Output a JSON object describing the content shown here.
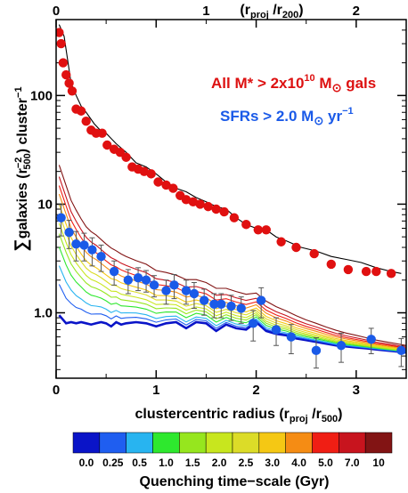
{
  "chart_data": {
    "type": "line",
    "xlabel_main": "clustercentric radius (r",
    "xlabel_sub1": "proj",
    "xlabel_mid": " /r",
    "xlabel_sub2": "500",
    "xlabel_end": ")",
    "top_xlabel_main": "(r",
    "top_xlabel_sub1": "proj",
    "top_xlabel_mid": " /r",
    "top_xlabel_sub2": "200",
    "top_xlabel_end": ")",
    "ylabel_sym": "∑",
    "ylabel_main": "galaxies (r",
    "ylabel_sub": "500",
    "ylabel_sup": "−2",
    "ylabel_mid": ") cluster",
    "ylabel_sup2": "−1",
    "xlim": [
      0,
      3.5
    ],
    "ylim": [
      0.25,
      500
    ],
    "yscale": "log",
    "x_ticks": [
      "0",
      "1",
      "2",
      "3"
    ],
    "x_tick_values": [
      0,
      1,
      2,
      3
    ],
    "top_x_ticks": [
      "0",
      "1",
      "2"
    ],
    "top_x_tick_values": [
      0,
      1.5,
      3.0
    ],
    "y_ticks": [
      "1.0",
      "10",
      "100"
    ],
    "y_tick_values": [
      1,
      10,
      100
    ],
    "legend_all": {
      "text": "All M* > 2x10",
      "sup": "10",
      "text2": " M",
      "sun": "⊙",
      "text3": " gals",
      "color": "#dd1111"
    },
    "legend_sfr": {
      "text": "SFRs > 2.0 M",
      "sun": "⊙",
      "text2": " yr",
      "sup": "−1",
      "color": "#1a5ae8"
    },
    "all_galaxies": {
      "color": "#e01010",
      "x": [
        0.03,
        0.05,
        0.07,
        0.1,
        0.13,
        0.16,
        0.2,
        0.25,
        0.3,
        0.35,
        0.4,
        0.46,
        0.51,
        0.58,
        0.64,
        0.7,
        0.76,
        0.82,
        0.88,
        0.95,
        1.02,
        1.1,
        1.17,
        1.24,
        1.3,
        1.37,
        1.44,
        1.52,
        1.6,
        1.68,
        1.78,
        1.9,
        2.02,
        2.1,
        2.25,
        2.4,
        2.58,
        2.75,
        2.92,
        3.1,
        3.2,
        3.35
      ],
      "y": [
        380,
        300,
        200,
        155,
        130,
        110,
        75,
        72,
        58,
        48,
        45,
        45,
        35,
        32,
        30,
        27,
        22,
        21,
        20,
        19,
        16,
        15,
        14,
        12,
        11,
        10.5,
        10,
        9.5,
        9,
        8.5,
        7.5,
        6.5,
        5.8,
        5.8,
        4.5,
        4,
        3.5,
        2.8,
        2.5,
        2.4,
        2.4,
        2.3
      ]
    },
    "all_model": {
      "color": "#000000",
      "x": [
        0.03,
        0.08,
        0.15,
        0.2,
        0.25,
        0.3,
        0.38,
        0.45,
        0.5,
        0.6,
        0.7,
        0.8,
        0.9,
        1.0,
        1.1,
        1.2,
        1.3,
        1.4,
        1.5,
        1.6,
        1.7,
        1.8,
        1.9,
        2.0,
        2.1,
        2.2,
        2.3,
        2.45,
        2.6,
        2.75,
        2.9,
        3.05,
        3.2,
        3.35,
        3.45
      ],
      "y": [
        450,
        350,
        130,
        100,
        80,
        70,
        55,
        47,
        45,
        36,
        30,
        24,
        22,
        19,
        16,
        14,
        13,
        11.5,
        10.5,
        9.5,
        9,
        7.5,
        6.5,
        6,
        5.8,
        5,
        4.6,
        4,
        3.7,
        3.3,
        3.1,
        2.9,
        2.6,
        2.4,
        2.3
      ]
    },
    "sfr_galaxies": {
      "color": "#1a5ae8",
      "x": [
        0.05,
        0.13,
        0.2,
        0.28,
        0.36,
        0.45,
        0.58,
        0.72,
        0.82,
        0.9,
        0.98,
        1.1,
        1.18,
        1.3,
        1.38,
        1.48,
        1.58,
        1.65,
        1.75,
        1.85,
        1.97,
        2.05,
        2.2,
        2.35,
        2.6,
        2.85,
        3.15,
        3.45
      ],
      "y": [
        7.5,
        5.5,
        4.3,
        4.2,
        3.8,
        3.3,
        2.4,
        2.0,
        2.1,
        2.0,
        1.8,
        1.6,
        1.8,
        1.6,
        1.5,
        1.3,
        1.2,
        1.2,
        1.15,
        1.1,
        0.8,
        1.3,
        0.7,
        0.6,
        0.45,
        0.5,
        0.57,
        0.45
      ],
      "err": [
        2.4,
        1.6,
        1.3,
        1.2,
        1.1,
        0.9,
        0.6,
        0.5,
        0.5,
        0.45,
        0.4,
        0.4,
        0.45,
        0.4,
        0.4,
        0.35,
        0.3,
        0.3,
        0.3,
        0.3,
        0.25,
        0.4,
        0.2,
        0.18,
        0.14,
        0.15,
        0.15,
        0.13
      ]
    },
    "colorbar": {
      "title": "Quenching time−scale (Gyr)",
      "labels": [
        "0.0",
        "0.25",
        "0.5",
        "1.0",
        "1.5",
        "2.0",
        "2.5",
        "3.0",
        "4.0",
        "5.0",
        "7.0",
        "10"
      ],
      "colors": [
        "#0a14c8",
        "#1f5ef0",
        "#28b4f0",
        "#2ee82e",
        "#96e61e",
        "#c8e61e",
        "#dcdc28",
        "#f5c814",
        "#f58c14",
        "#f01e14",
        "#c8141e",
        "#821414"
      ]
    },
    "model_tracks": {
      "x": [
        0.03,
        0.1,
        0.15,
        0.2,
        0.25,
        0.3,
        0.35,
        0.4,
        0.45,
        0.5,
        0.55,
        0.6,
        0.65,
        0.7,
        0.8,
        0.9,
        1.0,
        1.1,
        1.2,
        1.3,
        1.4,
        1.5,
        1.6,
        1.7,
        1.8,
        1.9,
        2.0,
        2.1,
        2.2,
        2.3,
        2.4,
        2.5,
        2.6,
        2.7,
        2.8,
        2.9,
        3.0,
        3.1,
        3.2,
        3.3,
        3.4,
        3.5
      ],
      "base": [
        0.95,
        0.8,
        0.82,
        0.8,
        0.82,
        0.8,
        0.78,
        0.8,
        0.82,
        0.8,
        0.75,
        0.82,
        0.78,
        0.8,
        0.82,
        0.8,
        0.75,
        0.8,
        0.82,
        0.72,
        0.82,
        0.8,
        0.68,
        0.78,
        0.72,
        0.7,
        0.82,
        0.68,
        0.64,
        0.62,
        0.58,
        0.56,
        0.54,
        0.52,
        0.5,
        0.49,
        0.48,
        0.47,
        0.46,
        0.45,
        0.44,
        0.43
      ],
      "excess": [
        22,
        14,
        10,
        8,
        6.5,
        5.4,
        4.8,
        4.4,
        3.9,
        3.5,
        3.2,
        2.9,
        2.7,
        2.5,
        2.2,
        2.0,
        1.7,
        1.55,
        1.4,
        1.3,
        1.2,
        1.1,
        1.0,
        0.9,
        0.85,
        0.78,
        0.7,
        0.6,
        0.5,
        0.42,
        0.36,
        0.3,
        0.26,
        0.22,
        0.19,
        0.16,
        0.14,
        0.12,
        0.1,
        0.09,
        0.08,
        0.07
      ],
      "fractions": [
        0.0,
        0.04,
        0.08,
        0.14,
        0.2,
        0.26,
        0.33,
        0.41,
        0.52,
        0.63,
        0.77,
        1.0
      ]
    }
  }
}
